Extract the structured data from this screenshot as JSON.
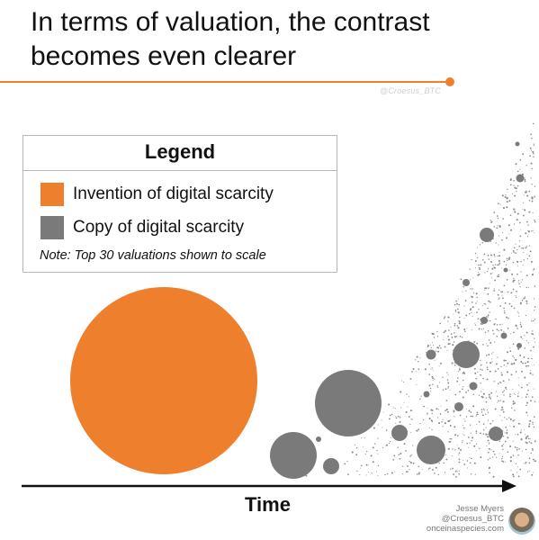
{
  "header": {
    "title": "In terms of valuation, the contrast becomes even clearer",
    "watermark": "@Croesus_BTC"
  },
  "legend": {
    "title": "Legend",
    "items": [
      {
        "label": "Invention of digital scarcity",
        "color": "#ee7f2d"
      },
      {
        "label": "Copy of digital scarcity",
        "color": "#7a7a7a"
      }
    ],
    "note": "Note: Top 30 valuations shown to scale"
  },
  "axis": {
    "label": "Time"
  },
  "credit": {
    "name": "Jesse Myers",
    "handle": "@Croesus_BTC",
    "site": "onceinaspecies.com"
  },
  "colors": {
    "accent": "#ee7f2d",
    "copy": "#7a7a7a",
    "dust": "#8a8a8a"
  }
}
